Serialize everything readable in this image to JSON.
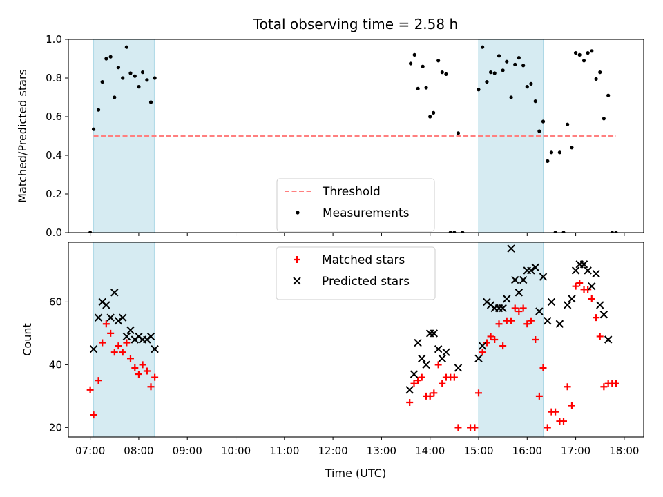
{
  "chart_data": {
    "title": "Total observing time = 2.58 h",
    "xlabel": "Time (UTC)",
    "x_unit": "hours UTC",
    "xlim": [
      6.55,
      18.4
    ],
    "x_ticks": [
      {
        "value": 7,
        "label": "07:00"
      },
      {
        "value": 8,
        "label": "08:00"
      },
      {
        "value": 9,
        "label": "09:00"
      },
      {
        "value": 10,
        "label": "10:00"
      },
      {
        "value": 11,
        "label": "11:00"
      },
      {
        "value": 12,
        "label": "12:00"
      },
      {
        "value": 13,
        "label": "13:00"
      },
      {
        "value": 14,
        "label": "14:00"
      },
      {
        "value": 15,
        "label": "15:00"
      },
      {
        "value": 16,
        "label": "16:00"
      },
      {
        "value": 17,
        "label": "17:00"
      },
      {
        "value": 18,
        "label": "18:00"
      }
    ],
    "colors": {
      "shade": "#add8e6",
      "threshold": "#ff7f7f",
      "measurements": "#000000",
      "matched": "#ff0000",
      "predicted": "#000000"
    },
    "shaded_intervals": [
      [
        7.07,
        8.32
      ],
      [
        15.0,
        16.33
      ]
    ],
    "panels": [
      {
        "type": "scatter",
        "ylabel": "Matched/Predicted stars",
        "ylim": [
          0,
          1
        ],
        "y_ticks": [
          "0.0",
          "0.2",
          "0.4",
          "0.6",
          "0.8",
          "1.0"
        ],
        "legend_position": "lower-center",
        "threshold": {
          "name": "Threshold",
          "y": 0.5,
          "x_range": [
            7.07,
            17.83
          ]
        },
        "series": [
          {
            "name": "Measurements",
            "marker": "dot",
            "points": [
              [
                7.0,
                0.0
              ],
              [
                7.07,
                0.535
              ],
              [
                7.17,
                0.635
              ],
              [
                7.25,
                0.78
              ],
              [
                7.33,
                0.9
              ],
              [
                7.42,
                0.91
              ],
              [
                7.5,
                0.7
              ],
              [
                7.58,
                0.855
              ],
              [
                7.67,
                0.8
              ],
              [
                7.75,
                0.96
              ],
              [
                7.83,
                0.825
              ],
              [
                7.92,
                0.81
              ],
              [
                8.0,
                0.755
              ],
              [
                8.08,
                0.83
              ],
              [
                8.17,
                0.79
              ],
              [
                8.25,
                0.675
              ],
              [
                8.33,
                0.8
              ],
              [
                13.6,
                0.875
              ],
              [
                13.68,
                0.92
              ],
              [
                13.75,
                0.745
              ],
              [
                13.85,
                0.86
              ],
              [
                13.92,
                0.75
              ],
              [
                14.0,
                0.6
              ],
              [
                14.07,
                0.62
              ],
              [
                14.17,
                0.89
              ],
              [
                14.25,
                0.83
              ],
              [
                14.33,
                0.82
              ],
              [
                14.42,
                0.0
              ],
              [
                14.5,
                0.0
              ],
              [
                14.58,
                0.515
              ],
              [
                14.67,
                0.0
              ],
              [
                15.0,
                0.74
              ],
              [
                15.08,
                0.96
              ],
              [
                15.17,
                0.78
              ],
              [
                15.25,
                0.83
              ],
              [
                15.33,
                0.825
              ],
              [
                15.42,
                0.915
              ],
              [
                15.5,
                0.84
              ],
              [
                15.58,
                0.885
              ],
              [
                15.67,
                0.7
              ],
              [
                15.75,
                0.87
              ],
              [
                15.83,
                0.905
              ],
              [
                15.92,
                0.865
              ],
              [
                16.0,
                0.755
              ],
              [
                16.08,
                0.77
              ],
              [
                16.17,
                0.68
              ],
              [
                16.25,
                0.525
              ],
              [
                16.33,
                0.575
              ],
              [
                16.42,
                0.37
              ],
              [
                16.5,
                0.415
              ],
              [
                16.58,
                0.0
              ],
              [
                16.67,
                0.415
              ],
              [
                16.75,
                0.0
              ],
              [
                16.83,
                0.56
              ],
              [
                16.92,
                0.44
              ],
              [
                17.0,
                0.93
              ],
              [
                17.08,
                0.92
              ],
              [
                17.17,
                0.89
              ],
              [
                17.25,
                0.93
              ],
              [
                17.33,
                0.94
              ],
              [
                17.42,
                0.795
              ],
              [
                17.5,
                0.83
              ],
              [
                17.58,
                0.59
              ],
              [
                17.67,
                0.71
              ],
              [
                17.75,
                0.0
              ],
              [
                17.83,
                0.0
              ]
            ]
          }
        ]
      },
      {
        "type": "scatter",
        "ylabel": "Count",
        "ylim": [
          17,
          79
        ],
        "y_ticks": [
          "20",
          "40",
          "60"
        ],
        "legend_position": "upper-center",
        "series": [
          {
            "name": "Matched stars",
            "marker": "plus",
            "points": [
              [
                7.0,
                32
              ],
              [
                7.07,
                24
              ],
              [
                7.17,
                35
              ],
              [
                7.25,
                47
              ],
              [
                7.33,
                53
              ],
              [
                7.42,
                50
              ],
              [
                7.5,
                44
              ],
              [
                7.58,
                46
              ],
              [
                7.67,
                44
              ],
              [
                7.75,
                47
              ],
              [
                7.83,
                42
              ],
              [
                7.92,
                39
              ],
              [
                8.0,
                37
              ],
              [
                8.08,
                40
              ],
              [
                8.17,
                38
              ],
              [
                8.25,
                33
              ],
              [
                8.33,
                36
              ],
              [
                13.58,
                28
              ],
              [
                13.67,
                34
              ],
              [
                13.75,
                35
              ],
              [
                13.83,
                36
              ],
              [
                13.92,
                30
              ],
              [
                14.0,
                30
              ],
              [
                14.08,
                31
              ],
              [
                14.17,
                40
              ],
              [
                14.25,
                34
              ],
              [
                14.33,
                36
              ],
              [
                14.42,
                36
              ],
              [
                14.5,
                36
              ],
              [
                14.58,
                20
              ],
              [
                14.83,
                20
              ],
              [
                14.92,
                20
              ],
              [
                15.0,
                31
              ],
              [
                15.08,
                44
              ],
              [
                15.17,
                47
              ],
              [
                15.25,
                49
              ],
              [
                15.33,
                48
              ],
              [
                15.42,
                53
              ],
              [
                15.5,
                46
              ],
              [
                15.58,
                54
              ],
              [
                15.67,
                54
              ],
              [
                15.75,
                58
              ],
              [
                15.83,
                57
              ],
              [
                15.92,
                58
              ],
              [
                16.0,
                53
              ],
              [
                16.08,
                54
              ],
              [
                16.17,
                48
              ],
              [
                16.25,
                30
              ],
              [
                16.33,
                39
              ],
              [
                16.42,
                20
              ],
              [
                16.5,
                25
              ],
              [
                16.58,
                25
              ],
              [
                16.67,
                22
              ],
              [
                16.75,
                22
              ],
              [
                16.83,
                33
              ],
              [
                16.92,
                27
              ],
              [
                17.0,
                65
              ],
              [
                17.08,
                66
              ],
              [
                17.17,
                64
              ],
              [
                17.25,
                64
              ],
              [
                17.33,
                61
              ],
              [
                17.42,
                55
              ],
              [
                17.5,
                49
              ],
              [
                17.58,
                33
              ],
              [
                17.67,
                34
              ],
              [
                17.75,
                34
              ],
              [
                17.83,
                34
              ]
            ]
          },
          {
            "name": "Predicted stars",
            "marker": "x",
            "points": [
              [
                7.07,
                45
              ],
              [
                7.17,
                55
              ],
              [
                7.25,
                60
              ],
              [
                7.33,
                59
              ],
              [
                7.42,
                55
              ],
              [
                7.5,
                63
              ],
              [
                7.58,
                54
              ],
              [
                7.67,
                55
              ],
              [
                7.75,
                49
              ],
              [
                7.83,
                51
              ],
              [
                7.92,
                48
              ],
              [
                8.0,
                49
              ],
              [
                8.08,
                48
              ],
              [
                8.17,
                48
              ],
              [
                8.25,
                49
              ],
              [
                8.33,
                45
              ],
              [
                13.58,
                32
              ],
              [
                13.67,
                37
              ],
              [
                13.75,
                47
              ],
              [
                13.83,
                42
              ],
              [
                13.92,
                40
              ],
              [
                14.0,
                50
              ],
              [
                14.08,
                50
              ],
              [
                14.17,
                45
              ],
              [
                14.25,
                42
              ],
              [
                14.33,
                44
              ],
              [
                14.58,
                39
              ],
              [
                15.0,
                42
              ],
              [
                15.08,
                46
              ],
              [
                15.17,
                60
              ],
              [
                15.25,
                59
              ],
              [
                15.33,
                58
              ],
              [
                15.42,
                58
              ],
              [
                15.5,
                58
              ],
              [
                15.58,
                61
              ],
              [
                15.67,
                77
              ],
              [
                15.75,
                67
              ],
              [
                15.83,
                63
              ],
              [
                15.92,
                67
              ],
              [
                16.0,
                70
              ],
              [
                16.08,
                70
              ],
              [
                16.17,
                71
              ],
              [
                16.25,
                57
              ],
              [
                16.33,
                68
              ],
              [
                16.42,
                54
              ],
              [
                16.5,
                60
              ],
              [
                16.67,
                53
              ],
              [
                16.83,
                59
              ],
              [
                16.92,
                61
              ],
              [
                17.0,
                70
              ],
              [
                17.08,
                72
              ],
              [
                17.17,
                72
              ],
              [
                17.25,
                70
              ],
              [
                17.33,
                65
              ],
              [
                17.42,
                69
              ],
              [
                17.5,
                59
              ],
              [
                17.58,
                56
              ],
              [
                17.67,
                48
              ]
            ]
          }
        ]
      }
    ]
  }
}
